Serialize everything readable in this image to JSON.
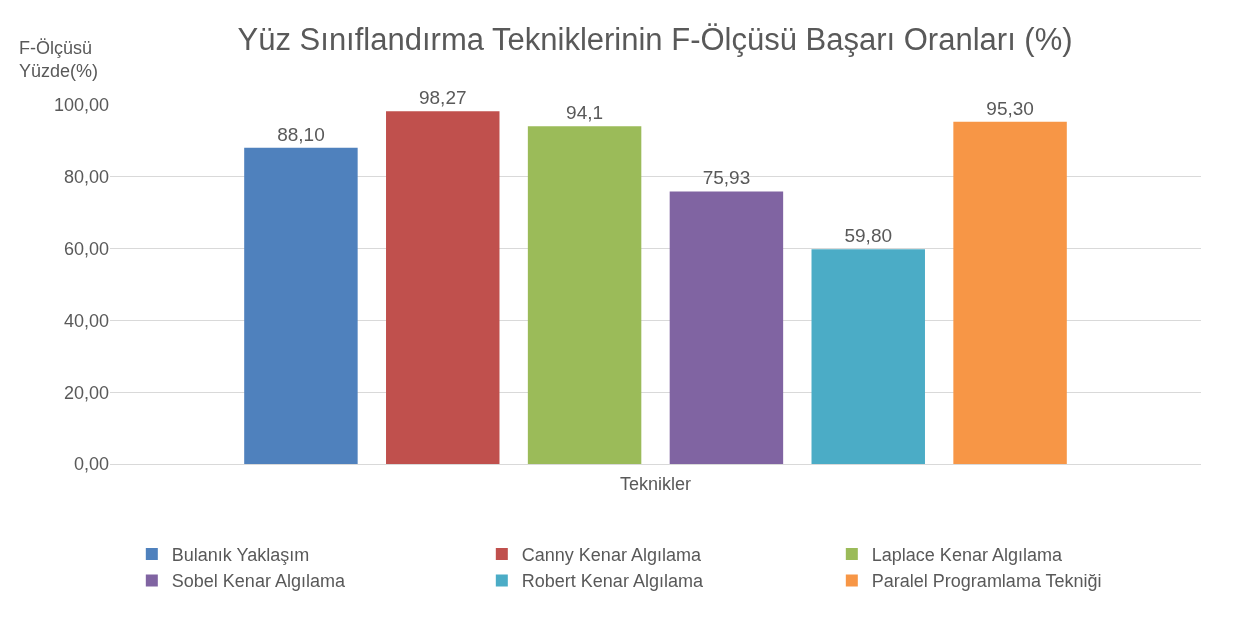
{
  "chart_data": {
    "type": "bar",
    "title": "Yüz Sınıflandırma Tekniklerinin F-Ölçüsü Başarı Oranları (%)",
    "ylabel": "F-Ölçüsü\nYüzde(%)",
    "xlabel": "Teknikler",
    "categories": [
      null
    ],
    "series": [
      {
        "name": "Bulanık Yaklaşım",
        "color": "#4f81bd",
        "values": [
          88.1
        ],
        "value_labels": [
          "88,10"
        ]
      },
      {
        "name": "Canny Kenar Algılama",
        "color": "#c0504d",
        "values": [
          98.27
        ],
        "value_labels": [
          "98,27"
        ]
      },
      {
        "name": "Laplace Kenar Algılama",
        "color": "#9bbb59",
        "values": [
          94.1
        ],
        "value_labels": [
          "94,1"
        ]
      },
      {
        "name": "Sobel Kenar Algılama",
        "color": "#8064a2",
        "values": [
          75.93
        ],
        "value_labels": [
          "75,93"
        ]
      },
      {
        "name": "Robert Kenar Algılama",
        "color": "#4bacc6",
        "values": [
          59.8
        ],
        "value_labels": [
          "59,80"
        ]
      },
      {
        "name": "Paralel Programlama Tekniği",
        "color": "#f79646",
        "values": [
          95.3
        ],
        "value_labels": [
          "95,30"
        ]
      }
    ],
    "ylim": [
      0,
      100
    ],
    "yticks": [
      {
        "value": 0,
        "label": "0,00"
      },
      {
        "value": 20,
        "label": "20,00"
      },
      {
        "value": 40,
        "label": "40,00"
      },
      {
        "value": 60,
        "label": "60,00"
      },
      {
        "value": 80,
        "label": "80,00"
      },
      {
        "value": 100,
        "label": "100,00"
      }
    ],
    "grid": "y",
    "legend": "bottom"
  }
}
